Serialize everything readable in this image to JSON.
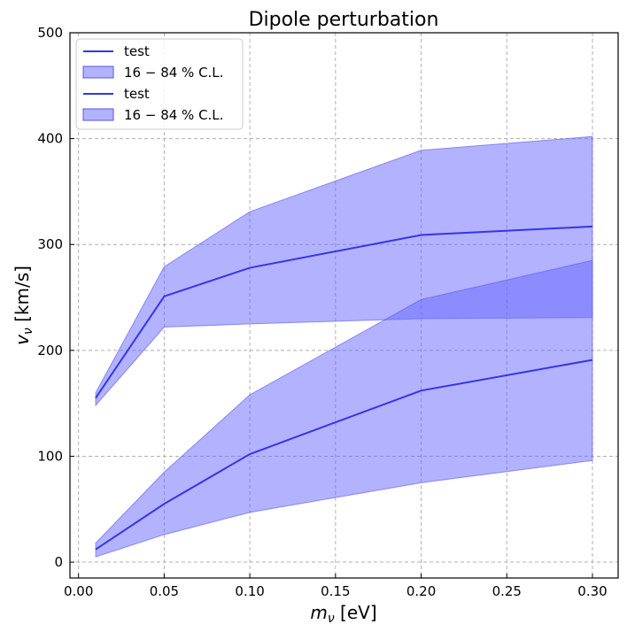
{
  "chart_data": {
    "type": "area",
    "title": "Dipole perturbation",
    "xlabel_main": "m",
    "xlabel_sub": "ν",
    "xlabel_unit": " [eV]",
    "ylabel_main": "v",
    "ylabel_sub": "ν",
    "ylabel_unit": " [km/s]",
    "xlim": [
      -0.005,
      0.315
    ],
    "ylim": [
      -15,
      500
    ],
    "xticks": [
      0.0,
      0.05,
      0.1,
      0.15,
      0.2,
      0.25,
      0.3
    ],
    "xtick_labels": [
      "0.00",
      "0.05",
      "0.10",
      "0.15",
      "0.20",
      "0.25",
      "0.30"
    ],
    "yticks": [
      0,
      100,
      200,
      300,
      400,
      500
    ],
    "ytick_labels": [
      "0",
      "100",
      "200",
      "300",
      "400",
      "500"
    ],
    "grid": true,
    "legend_position": "top-left",
    "legend": [
      {
        "kind": "line",
        "label": "test"
      },
      {
        "kind": "band",
        "label": "16 − 84 % C.L."
      },
      {
        "kind": "line",
        "label": "test"
      },
      {
        "kind": "band",
        "label": "16 − 84 % C.L."
      }
    ],
    "x": [
      0.01,
      0.05,
      0.1,
      0.2,
      0.3
    ],
    "series": [
      {
        "median": [
          155,
          251,
          278,
          309,
          317
        ],
        "lower": [
          148,
          222,
          225,
          230,
          231
        ],
        "upper": [
          160,
          279,
          331,
          389,
          402
        ],
        "line_color": "#3535e6",
        "band_color": "#6666ff",
        "band_edge": "#5555ee",
        "band_opacity": 0.5
      },
      {
        "median": [
          12,
          55,
          102,
          162,
          191
        ],
        "lower": [
          5,
          26,
          47,
          75,
          96
        ],
        "upper": [
          18,
          85,
          158,
          248,
          285
        ],
        "line_color": "#3535e6",
        "band_color": "#6666ff",
        "band_edge": "#5555ee",
        "band_opacity": 0.5
      }
    ]
  }
}
